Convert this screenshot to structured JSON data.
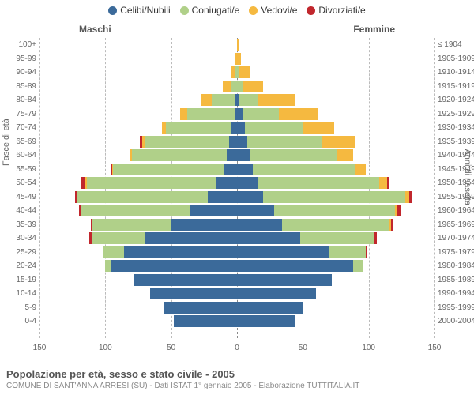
{
  "chart": {
    "type": "population-pyramid",
    "legend": [
      {
        "label": "Celibi/Nubili",
        "color": "#3b6a9a"
      },
      {
        "label": "Coniugati/e",
        "color": "#b0d089"
      },
      {
        "label": "Vedovi/e",
        "color": "#f5b940"
      },
      {
        "label": "Divorziati/e",
        "color": "#c1272d"
      }
    ],
    "header_male": "Maschi",
    "header_female": "Femmine",
    "left_axis_title": "Fasce di età",
    "right_axis_title": "Anni di nascita",
    "xlim": 150,
    "xticks": [
      150,
      100,
      50,
      0,
      50,
      100,
      150
    ],
    "background_color": "#ffffff",
    "grid_color": "#bbbbbb",
    "zero_line_color": "#888888",
    "tick_fontsize": 10,
    "rows": [
      {
        "age": "100+",
        "birth": "≤ 1904",
        "m": [
          0,
          0,
          0,
          0
        ],
        "f": [
          0,
          0,
          1,
          0
        ]
      },
      {
        "age": "95-99",
        "birth": "1905-1909",
        "m": [
          0,
          0,
          1,
          0
        ],
        "f": [
          0,
          0,
          3,
          0
        ]
      },
      {
        "age": "90-94",
        "birth": "1910-1914",
        "m": [
          0,
          1,
          4,
          0
        ],
        "f": [
          0,
          1,
          9,
          0
        ]
      },
      {
        "age": "85-89",
        "birth": "1915-1919",
        "m": [
          0,
          5,
          6,
          0
        ],
        "f": [
          0,
          4,
          16,
          0
        ]
      },
      {
        "age": "80-84",
        "birth": "1920-1924",
        "m": [
          1,
          18,
          8,
          0
        ],
        "f": [
          2,
          14,
          28,
          0
        ]
      },
      {
        "age": "75-79",
        "birth": "1925-1929",
        "m": [
          2,
          36,
          5,
          0
        ],
        "f": [
          4,
          28,
          30,
          0
        ]
      },
      {
        "age": "70-74",
        "birth": "1930-1934",
        "m": [
          4,
          50,
          3,
          0
        ],
        "f": [
          6,
          44,
          24,
          0
        ]
      },
      {
        "age": "65-69",
        "birth": "1935-1939",
        "m": [
          6,
          64,
          2,
          2
        ],
        "f": [
          8,
          56,
          26,
          0
        ]
      },
      {
        "age": "60-64",
        "birth": "1940-1944",
        "m": [
          8,
          72,
          1,
          0
        ],
        "f": [
          10,
          66,
          12,
          0
        ]
      },
      {
        "age": "55-59",
        "birth": "1945-1949",
        "m": [
          10,
          84,
          1,
          1
        ],
        "f": [
          12,
          78,
          8,
          0
        ]
      },
      {
        "age": "50-54",
        "birth": "1950-1954",
        "m": [
          16,
          98,
          1,
          3
        ],
        "f": [
          16,
          92,
          6,
          1
        ]
      },
      {
        "age": "45-49",
        "birth": "1955-1959",
        "m": [
          22,
          100,
          0,
          1
        ],
        "f": [
          20,
          108,
          3,
          2
        ]
      },
      {
        "age": "40-44",
        "birth": "1960-1964",
        "m": [
          36,
          82,
          0,
          2
        ],
        "f": [
          28,
          92,
          2,
          3
        ]
      },
      {
        "age": "35-39",
        "birth": "1965-1969",
        "m": [
          50,
          60,
          0,
          1
        ],
        "f": [
          34,
          82,
          1,
          2
        ]
      },
      {
        "age": "30-34",
        "birth": "1970-1974",
        "m": [
          70,
          40,
          0,
          2
        ],
        "f": [
          48,
          56,
          0,
          2
        ]
      },
      {
        "age": "25-29",
        "birth": "1975-1979",
        "m": [
          86,
          16,
          0,
          0
        ],
        "f": [
          70,
          28,
          0,
          1
        ]
      },
      {
        "age": "20-24",
        "birth": "1980-1984",
        "m": [
          96,
          4,
          0,
          0
        ],
        "f": [
          88,
          8,
          0,
          0
        ]
      },
      {
        "age": "15-19",
        "birth": "1985-1989",
        "m": [
          78,
          0,
          0,
          0
        ],
        "f": [
          72,
          0,
          0,
          0
        ]
      },
      {
        "age": "10-14",
        "birth": "1990-1994",
        "m": [
          66,
          0,
          0,
          0
        ],
        "f": [
          60,
          0,
          0,
          0
        ]
      },
      {
        "age": "5-9",
        "birth": "1995-1999",
        "m": [
          56,
          0,
          0,
          0
        ],
        "f": [
          50,
          0,
          0,
          0
        ]
      },
      {
        "age": "0-4",
        "birth": "2000-2004",
        "m": [
          48,
          0,
          0,
          0
        ],
        "f": [
          44,
          0,
          0,
          0
        ]
      }
    ]
  },
  "footer": {
    "title": "Popolazione per età, sesso e stato civile - 2005",
    "subtitle": "COMUNE DI SANT'ANNA ARRESI (SU) - Dati ISTAT 1° gennaio 2005 - Elaborazione TUTTITALIA.IT"
  }
}
